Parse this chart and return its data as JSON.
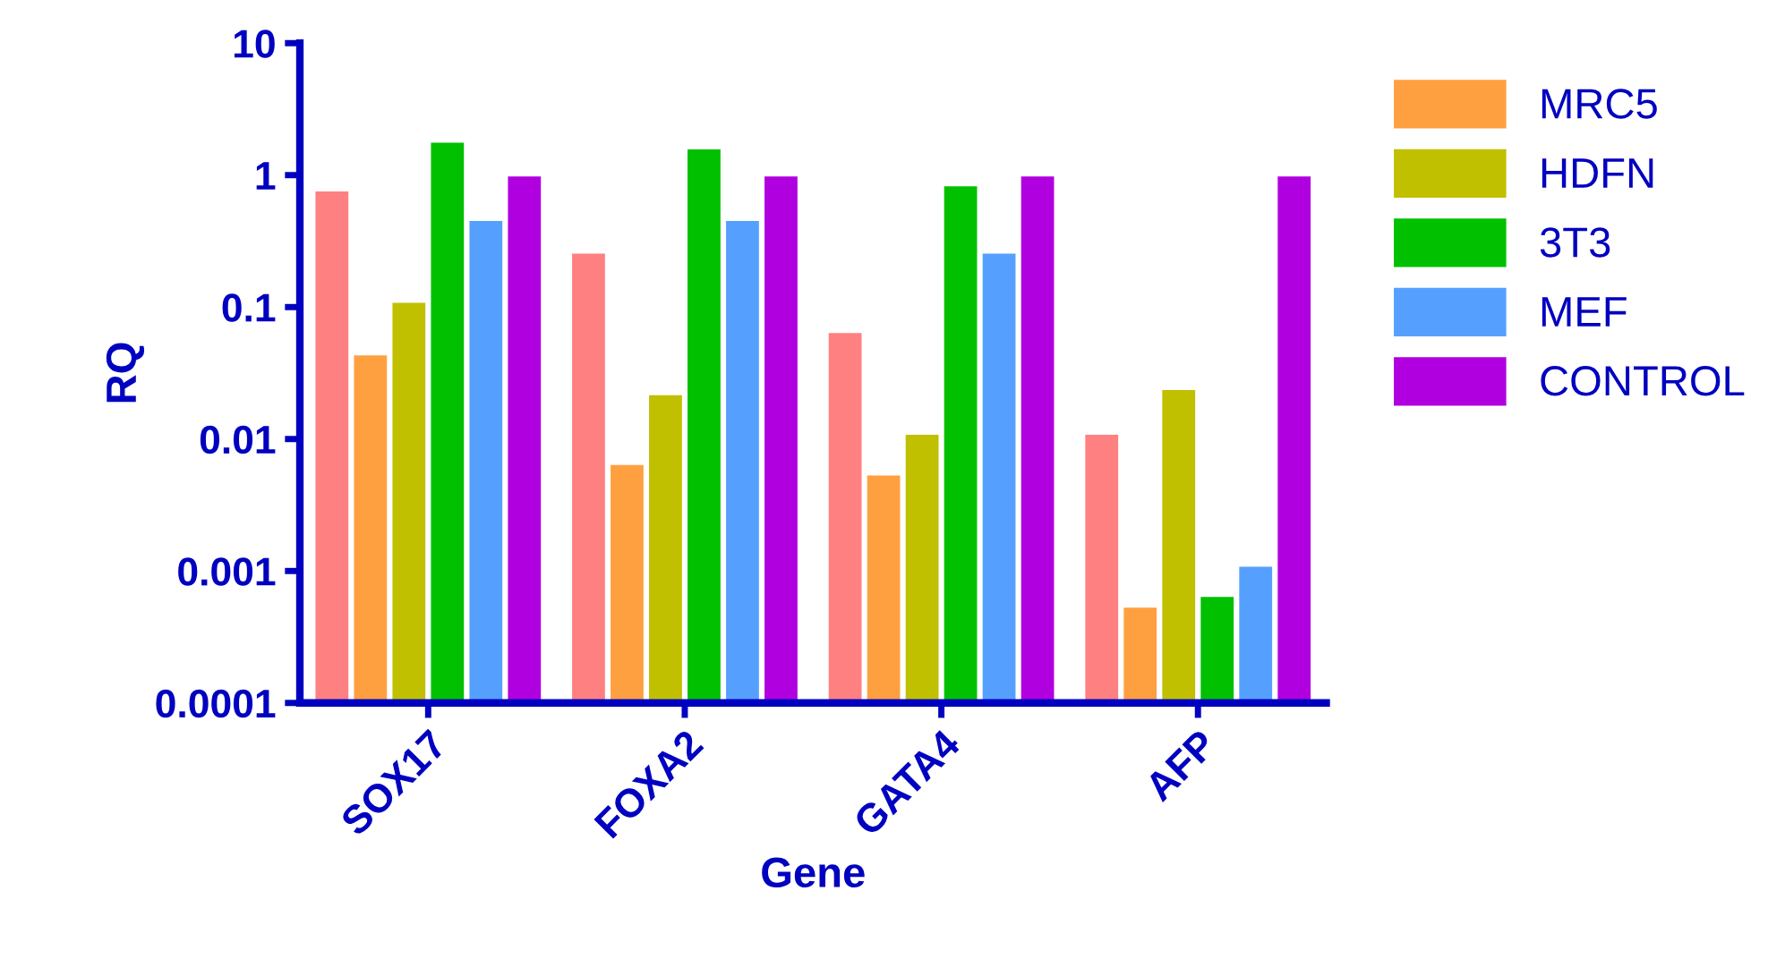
{
  "chart_data": {
    "type": "bar",
    "xlabel": "Gene",
    "ylabel": "RQ",
    "log": true,
    "categories": [
      "SOX17",
      "FOXA2",
      "GATA4",
      "AFP"
    ],
    "series": [
      {
        "color": "#ff8080",
        "values": [
          0.77,
          0.26,
          0.065,
          0.011
        ]
      },
      {
        "name": "MRC5",
        "color": "#ffa040",
        "values": [
          0.044,
          0.0065,
          0.0054,
          0.00054
        ]
      },
      {
        "name": "HDFN",
        "color": "#c0c000",
        "values": [
          0.11,
          0.022,
          0.011,
          0.024
        ]
      },
      {
        "name": "3T3",
        "color": "#00c000",
        "values": [
          1.8,
          1.6,
          0.84,
          0.00065
        ]
      },
      {
        "name": "MEF",
        "color": "#55a0ff",
        "values": [
          0.46,
          0.46,
          0.26,
          0.0011
        ]
      },
      {
        "name": "CONTROL",
        "color": "#b000e0",
        "values": [
          1,
          1,
          1,
          1
        ]
      }
    ],
    "ylim": [
      0.0001,
      10
    ],
    "yticks": [
      {
        "value": 0.0001,
        "label": "0.0001"
      },
      {
        "value": 0.001,
        "label": "0.001"
      },
      {
        "value": 0.01,
        "label": "0.01"
      },
      {
        "value": 0.1,
        "label": "0.1"
      },
      1,
      10
    ],
    "legend": "right",
    "grid": false
  }
}
